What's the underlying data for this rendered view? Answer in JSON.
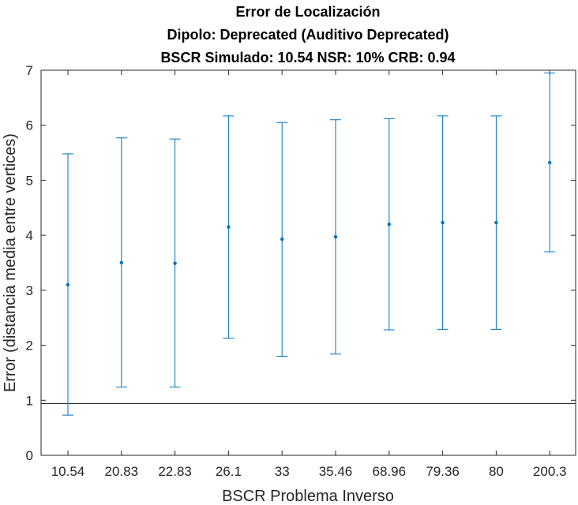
{
  "chart_data": {
    "type": "errorbar",
    "title": "Error de Localización",
    "subtitle_1": "Dipolo: Deprecated (Auditivo Deprecated)",
    "subtitle_2": "BSCR Simulado: 10.54 NSR: 10% CRB: 0.94",
    "xlabel": "BSCR Problema Inverso",
    "ylabel": "Error (distancia media entre vertices)",
    "categories": [
      "10.54",
      "20.83",
      "22.83",
      "26.1",
      "33",
      "35.46",
      "68.96",
      "79.36",
      "80",
      "200.3"
    ],
    "mean": [
      3.1,
      3.5,
      3.49,
      4.15,
      3.93,
      3.97,
      4.2,
      4.23,
      4.23,
      5.32
    ],
    "lower": [
      0.73,
      1.24,
      1.24,
      2.13,
      1.8,
      1.84,
      2.28,
      2.29,
      2.29,
      3.7
    ],
    "upper": [
      5.48,
      5.77,
      5.75,
      6.17,
      6.05,
      6.1,
      6.12,
      6.17,
      6.17,
      6.95
    ],
    "reference_line": 0.94,
    "ylim": [
      0,
      7
    ],
    "yticks": [
      0,
      1,
      2,
      3,
      4,
      5,
      6,
      7
    ],
    "series_color": "#0072BD",
    "reference_color": "#262626"
  }
}
